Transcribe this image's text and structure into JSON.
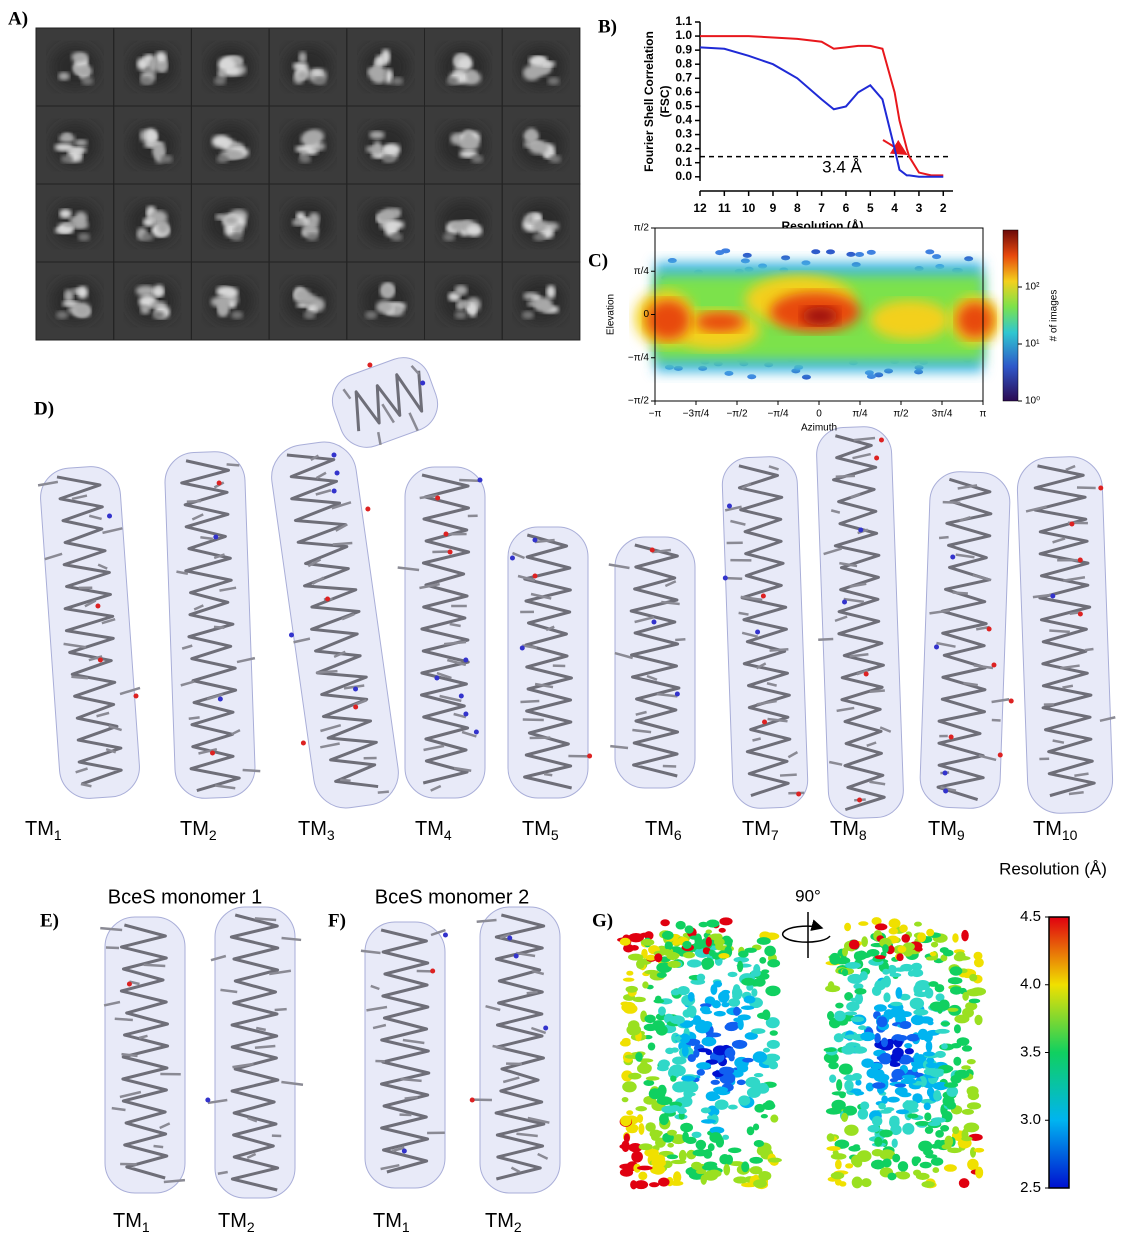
{
  "panel_labels": [
    "A)",
    "B)",
    "C)",
    "D)",
    "E)",
    "F)",
    "G)"
  ],
  "chart_data": [
    {
      "type": "line",
      "x_label": "Resolution (Å)",
      "y_label": [
        "Fourier Shell Correlation",
        "(FSC)"
      ],
      "x": [
        12,
        11,
        10,
        9,
        8,
        7,
        6.5,
        6,
        5.5,
        5,
        4.5,
        4,
        3.8,
        3.5,
        3.4,
        3,
        2.5,
        2
      ],
      "series": [
        {
          "color": "#e8171c",
          "values": [
            1,
            1,
            1,
            0.99,
            0.98,
            0.96,
            0.91,
            0.92,
            0.93,
            0.93,
            0.91,
            0.6,
            0.4,
            0.2,
            0.143,
            0.03,
            0.01,
            0.01
          ]
        },
        {
          "color": "#1f2ad6",
          "values": [
            0.92,
            0.91,
            0.86,
            0.8,
            0.7,
            0.55,
            0.48,
            0.5,
            0.6,
            0.65,
            0.55,
            0.2,
            0.05,
            0.01,
            0.01,
            0,
            0,
            0
          ]
        }
      ],
      "xlim": [
        12,
        1.6
      ],
      "ylim": [
        -0.03,
        1.1
      ],
      "xticks": [
        12,
        11,
        10,
        9,
        8,
        7,
        6,
        5,
        4,
        3,
        2
      ],
      "yticks": [
        {
          "value": 0,
          "label": "0.0"
        },
        0.1,
        0.2,
        0.3,
        0.4,
        0.5,
        0.6,
        0.7,
        0.8,
        0.9,
        {
          "value": 1,
          "label": "1.0"
        },
        1.1
      ],
      "threshold": 0.143,
      "annotation": "3.4 Å",
      "annotation_color": "#e8171c"
    },
    {
      "type": "hexbin",
      "x_label": "Azimuth",
      "y_label": "Elevation",
      "colorbar_label": "# of images",
      "xlim": [
        -3.1416,
        3.1416
      ],
      "ylim": [
        -1.5708,
        1.5708
      ],
      "xticks": [
        {
          "value": -3.1416,
          "label": "−π"
        },
        {
          "value": -2.3562,
          "label": "−3π/4"
        },
        {
          "value": -1.5708,
          "label": "−π/2"
        },
        {
          "value": -0.7854,
          "label": "−π/4"
        },
        0,
        {
          "value": 0.7854,
          "label": "π/4"
        },
        {
          "value": 1.5708,
          "label": "π/2"
        },
        {
          "value": 2.3562,
          "label": "3π/4"
        },
        {
          "value": 3.1416,
          "label": "π"
        }
      ],
      "yticks": [
        {
          "value": -1.5708,
          "label": "−π/2"
        },
        {
          "value": -0.7854,
          "label": "−π/4"
        },
        0,
        {
          "value": 0.7854,
          "label": "π/4"
        },
        {
          "value": 1.5708,
          "label": "π/2"
        }
      ],
      "clim": [
        1,
        1000
      ],
      "log_color": true,
      "cticks": [
        {
          "value": 1,
          "label": "10⁰"
        },
        {
          "value": 10,
          "label": "10¹"
        },
        {
          "value": 100,
          "label": "10²"
        }
      ]
    }
  ],
  "panel_d": {
    "labels": [
      {
        "main": "TM",
        "sub": "1"
      },
      {
        "main": "TM",
        "sub": "2"
      },
      {
        "main": "TM",
        "sub": "3"
      },
      {
        "main": "TM",
        "sub": "4"
      },
      {
        "main": "TM",
        "sub": "5"
      },
      {
        "main": "TM",
        "sub": "6"
      },
      {
        "main": "TM",
        "sub": "7"
      },
      {
        "main": "TM",
        "sub": "8"
      },
      {
        "main": "TM",
        "sub": "9"
      },
      {
        "main": "TM",
        "sub": "10"
      }
    ]
  },
  "panel_e": {
    "title": "BceS monomer 1",
    "labels": [
      {
        "main": "TM",
        "sub": "1"
      },
      {
        "main": "TM",
        "sub": "2"
      }
    ]
  },
  "panel_f": {
    "title": "BceS monomer 2",
    "labels": [
      {
        "main": "TM",
        "sub": "1"
      },
      {
        "main": "TM",
        "sub": "2"
      }
    ]
  },
  "panel_g": {
    "rotation": "90°",
    "colorbar_label": "Resolution (Å)",
    "clim": [
      2.5,
      4.5
    ],
    "cticks": [
      2.5,
      {
        "value": 3,
        "label": "3.0"
      },
      3.5,
      {
        "value": 4,
        "label": "4.0"
      },
      4.5
    ]
  }
}
